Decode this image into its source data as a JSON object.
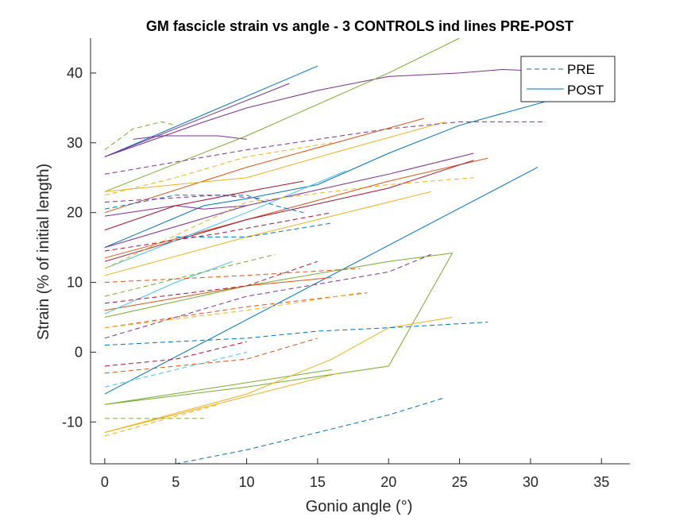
{
  "chart_data": {
    "type": "line",
    "title": "GM fascicle strain vs angle - 3 CONTROLS ind lines PRE-POST",
    "xlabel": "Gonio angle (°)",
    "ylabel": "Strain (% of initial length)",
    "xlim": [
      -1,
      37
    ],
    "ylim": [
      -16,
      45
    ],
    "xticks": [
      "0",
      "5",
      "10",
      "15",
      "20",
      "25",
      "30",
      "35"
    ],
    "yticks": [
      "-10",
      "0",
      "10",
      "20",
      "30",
      "40"
    ],
    "grid": false,
    "legend": {
      "position": "top-right",
      "entries": [
        {
          "label": "PRE",
          "style": "dashed"
        },
        {
          "label": "POST",
          "style": "solid"
        }
      ]
    },
    "series": [
      {
        "group": "POST",
        "color": "#0072BD",
        "x": [
          0,
          30.5
        ],
        "y": [
          -6,
          26.5
        ]
      },
      {
        "group": "POST",
        "color": "#0072BD",
        "x": [
          0,
          15
        ],
        "y": [
          28,
          41
        ]
      },
      {
        "group": "POST",
        "color": "#0072BD",
        "x": [
          0,
          7,
          10,
          15,
          20,
          25,
          33
        ],
        "y": [
          15,
          21,
          22,
          24,
          28.5,
          32.5,
          37
        ]
      },
      {
        "group": "POST",
        "color": "#7E2F8E",
        "x": [
          0,
          7,
          10,
          15,
          20,
          25,
          28,
          35
        ],
        "y": [
          28,
          33,
          35,
          37.5,
          39.5,
          40,
          40.5,
          40
        ]
      },
      {
        "group": "POST",
        "color": "#7E2F8E",
        "x": [
          0,
          13
        ],
        "y": [
          28,
          38.5
        ]
      },
      {
        "group": "POST",
        "color": "#7E2F8E",
        "x": [
          2,
          4,
          8,
          10
        ],
        "y": [
          30.5,
          31,
          31,
          30.5
        ]
      },
      {
        "group": "POST",
        "color": "#7E2F8E",
        "x": [
          0,
          10,
          20,
          26
        ],
        "y": [
          15,
          21,
          25.5,
          28.5
        ]
      },
      {
        "group": "POST",
        "color": "#7E2F8E",
        "x": [
          0,
          5,
          7,
          10
        ],
        "y": [
          19.5,
          21,
          20.5,
          21
        ]
      },
      {
        "group": "POST",
        "color": "#77AC30",
        "x": [
          0,
          10,
          20,
          25
        ],
        "y": [
          23,
          31,
          40,
          45
        ]
      },
      {
        "group": "POST",
        "color": "#77AC30",
        "x": [
          0,
          10,
          20,
          24.5
        ],
        "y": [
          -7.5,
          -5,
          -2,
          14.2
        ]
      },
      {
        "group": "POST",
        "color": "#77AC30",
        "x": [
          0,
          16
        ],
        "y": [
          -7.5,
          -2.5
        ]
      },
      {
        "group": "POST",
        "color": "#77AC30",
        "x": [
          0,
          10,
          20,
          24.5
        ],
        "y": [
          5,
          9.5,
          13,
          14.2
        ]
      },
      {
        "group": "POST",
        "color": "#D95319",
        "x": [
          0,
          10,
          22.5
        ],
        "y": [
          20,
          26.5,
          33.5
        ]
      },
      {
        "group": "POST",
        "color": "#D95319",
        "x": [
          0,
          10,
          20,
          27
        ],
        "y": [
          13.5,
          19,
          24.5,
          27.8
        ]
      },
      {
        "group": "POST",
        "color": "#D95319",
        "x": [
          0,
          10,
          16
        ],
        "y": [
          6,
          9.5,
          10.7
        ]
      },
      {
        "group": "POST",
        "color": "#A2142F",
        "x": [
          0,
          10,
          20,
          26
        ],
        "y": [
          13,
          19,
          23.5,
          27.5
        ]
      },
      {
        "group": "POST",
        "color": "#A2142F",
        "x": [
          0,
          5,
          10,
          14
        ],
        "y": [
          17.5,
          21,
          23,
          24.5
        ]
      },
      {
        "group": "POST",
        "color": "#EDB120",
        "x": [
          0,
          10,
          20,
          23
        ],
        "y": [
          11,
          16.5,
          21.5,
          23
        ]
      },
      {
        "group": "POST",
        "color": "#EDB120",
        "x": [
          0,
          10,
          16,
          20,
          24.5
        ],
        "y": [
          -11.5,
          -6,
          -1,
          3.5,
          5
        ]
      },
      {
        "group": "POST",
        "color": "#EDB120",
        "x": [
          0,
          16.5
        ],
        "y": [
          -11.5,
          -3
        ]
      },
      {
        "group": "POST",
        "color": "#EDB120",
        "x": [
          0,
          10,
          16,
          24
        ],
        "y": [
          23,
          25,
          28.5,
          33
        ]
      },
      {
        "group": "POST",
        "color": "#4DBEEE",
        "x": [
          0,
          10,
          17
        ],
        "y": [
          12,
          20,
          26
        ]
      },
      {
        "group": "POST",
        "color": "#4DBEEE",
        "x": [
          0,
          5,
          9
        ],
        "y": [
          5.5,
          10,
          13
        ]
      },
      {
        "group": "PRE",
        "color": "#0072BD",
        "x": [
          5,
          10,
          15,
          20,
          24
        ],
        "y": [
          -16,
          -14,
          -11.5,
          -9,
          -6.5
        ]
      },
      {
        "group": "PRE",
        "color": "#0072BD",
        "x": [
          0,
          10,
          15,
          20,
          27
        ],
        "y": [
          1,
          2,
          3,
          3.5,
          4.3
        ]
      },
      {
        "group": "PRE",
        "color": "#0072BD",
        "x": [
          0,
          5,
          10,
          12,
          14
        ],
        "y": [
          20.5,
          22.5,
          22.5,
          21,
          20
        ]
      },
      {
        "group": "PRE",
        "color": "#0072BD",
        "x": [
          5,
          10,
          16
        ],
        "y": [
          16.5,
          16.5,
          18.5
        ]
      },
      {
        "group": "PRE",
        "color": "#7E2F8E",
        "x": [
          0,
          10,
          20,
          25,
          31
        ],
        "y": [
          25.5,
          29,
          32,
          33,
          33
        ]
      },
      {
        "group": "PRE",
        "color": "#7E2F8E",
        "x": [
          0,
          10,
          20,
          23
        ],
        "y": [
          2,
          8,
          11.5,
          14
        ]
      },
      {
        "group": "PRE",
        "color": "#7E2F8E",
        "x": [
          0,
          8,
          11
        ],
        "y": [
          21.5,
          22.5,
          22
        ]
      },
      {
        "group": "PRE",
        "color": "#77AC30",
        "x": [
          0,
          2,
          4,
          5
        ],
        "y": [
          29,
          32,
          33,
          32.5
        ]
      },
      {
        "group": "PRE",
        "color": "#77AC30",
        "x": [
          0,
          7
        ],
        "y": [
          -9.5,
          -9.5
        ]
      },
      {
        "group": "PRE",
        "color": "#77AC30",
        "x": [
          0,
          12
        ],
        "y": [
          8,
          14
        ]
      },
      {
        "group": "PRE",
        "color": "#D95319",
        "x": [
          0,
          10,
          18.5
        ],
        "y": [
          3.5,
          6.5,
          8.5
        ]
      },
      {
        "group": "PRE",
        "color": "#D95319",
        "x": [
          0,
          10,
          15
        ],
        "y": [
          -3,
          -1,
          2
        ]
      },
      {
        "group": "PRE",
        "color": "#D95319",
        "x": [
          0,
          10,
          18
        ],
        "y": [
          10,
          11,
          12
        ]
      },
      {
        "group": "PRE",
        "color": "#A2142F",
        "x": [
          0,
          10,
          15
        ],
        "y": [
          7,
          9.5,
          13
        ]
      },
      {
        "group": "PRE",
        "color": "#A2142F",
        "x": [
          0,
          8,
          16
        ],
        "y": [
          14.5,
          17,
          20
        ]
      },
      {
        "group": "PRE",
        "color": "#A2142F",
        "x": [
          0,
          5,
          10
        ],
        "y": [
          -2,
          -1,
          1.5
        ]
      },
      {
        "group": "PRE",
        "color": "#EDB120",
        "x": [
          0,
          10,
          20,
          26
        ],
        "y": [
          12,
          21.5,
          24,
          25
        ]
      },
      {
        "group": "PRE",
        "color": "#EDB120",
        "x": [
          0,
          8
        ],
        "y": [
          -12,
          -7.5
        ]
      },
      {
        "group": "PRE",
        "color": "#EDB120",
        "x": [
          0,
          5,
          10,
          16
        ],
        "y": [
          22.5,
          25,
          28,
          30
        ]
      },
      {
        "group": "PRE",
        "color": "#EDB120",
        "x": [
          0,
          10,
          18
        ],
        "y": [
          3.5,
          6,
          8.5
        ]
      },
      {
        "group": "PRE",
        "color": "#4DBEEE",
        "x": [
          0,
          10
        ],
        "y": [
          -5,
          0
        ]
      }
    ]
  }
}
